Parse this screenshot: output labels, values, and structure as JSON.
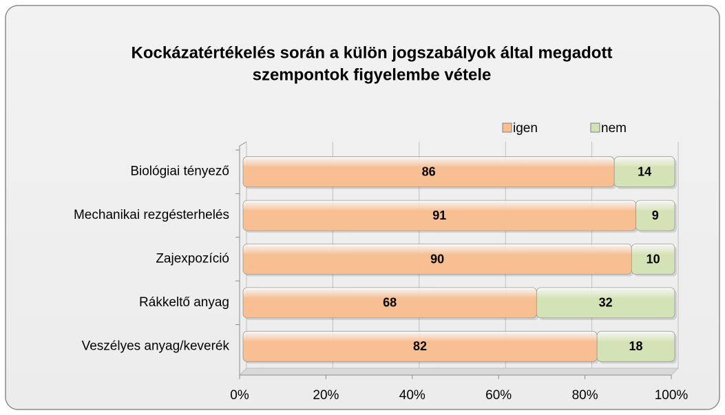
{
  "chart_data": {
    "type": "stacked_bar_horizontal",
    "title": [
      "Kockázatértékelés során a külön jogszabályok által megadott",
      "szempontok figyelembe vétele"
    ],
    "categories": [
      "Biológiai tényező",
      "Mechanikai rezgésterhelés",
      "Zajexpozíció",
      "Rákkeltő anyag",
      "Veszélyes anyag/keverék"
    ],
    "series": [
      {
        "name": "igen",
        "color": "#f7bf92",
        "values": [
          86,
          91,
          90,
          68,
          82
        ]
      },
      {
        "name": "nem",
        "color": "#d4e3b5",
        "values": [
          14,
          9,
          10,
          32,
          18
        ]
      }
    ],
    "xlim": [
      0,
      100
    ],
    "xticks": [
      {
        "value": 0,
        "label": "0%"
      },
      {
        "value": 20,
        "label": "20%"
      },
      {
        "value": 40,
        "label": "40%"
      },
      {
        "value": 60,
        "label": "60%"
      },
      {
        "value": 80,
        "label": "80%"
      },
      {
        "value": 100,
        "label": "100%"
      }
    ],
    "grid": true,
    "legend": "top-right"
  }
}
